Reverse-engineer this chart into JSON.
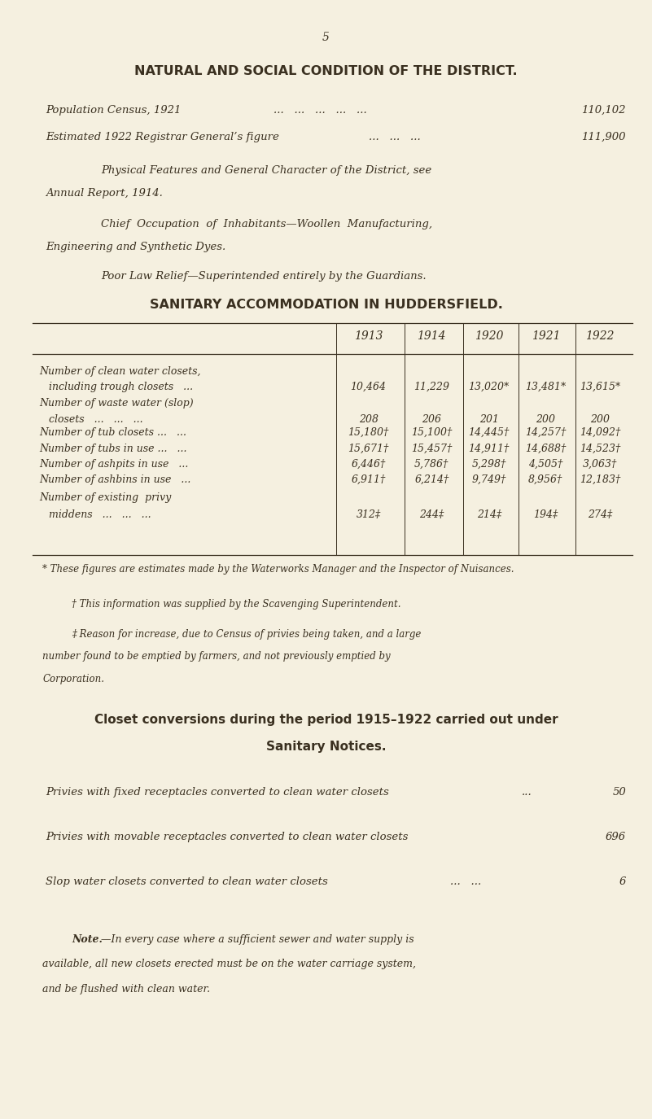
{
  "bg_color": "#f5f0e0",
  "text_color": "#3a3020",
  "page_number": "5",
  "title1": "NATURAL AND SOCIAL CONDITION OF THE DISTRICT.",
  "line1_label": "Population Census, 1921",
  "line1_value": "110,102",
  "line2_label": "Estimated 1922 Registrar General’s figure",
  "line2_value": "111,900",
  "para1a": "Physical Features and General Character of the District, see",
  "para1b": "Annual Report, 1914.",
  "para2a": "Chief  Occupation  of  Inhabitants—Woollen  Manufacturing,",
  "para2b": "Engineering and Synthetic Dyes.",
  "para3": "Poor Law Relief—Superintended entirely by the Guardians.",
  "table_title": "SANITARY ACCOMMODATION IN HUDDERSFIELD.",
  "col_headers": [
    "1913",
    "1914",
    "1920",
    "1921",
    "1922"
  ],
  "row_labels": [
    [
      "Number of clean water closets,",
      "   including trough closets   ..."
    ],
    [
      "Number of waste water (slop)",
      "   closets   ...   ...   ..."
    ],
    [
      "Number of tub closets ...   ..."
    ],
    [
      "Number of tubs in use ...   ..."
    ],
    [
      "Number of ashpits in use   ..."
    ],
    [
      "Number of ashbins in use   ..."
    ],
    [
      "Number of existing  privy",
      "   middens   ...   ...   ..."
    ]
  ],
  "table_data": [
    [
      "10,464",
      "11,229",
      "13,020*",
      "13,481*",
      "13,615*"
    ],
    [
      "208",
      "206",
      "201",
      "200",
      "200"
    ],
    [
      "15,180†",
      "15,100†",
      "14,445†",
      "14,257†",
      "14,092†"
    ],
    [
      "15,671†",
      "15,457†",
      "14,911†",
      "14,688†",
      "14,523†"
    ],
    [
      "6,446†",
      "5,786†",
      "5,298†",
      "4,505†",
      "3,063†"
    ],
    [
      "6,911†",
      "6,214†",
      "9,749†",
      "8,956†",
      "12,183†"
    ],
    [
      "312‡",
      "244‡",
      "214‡",
      "194‡",
      "274‡"
    ]
  ],
  "footnote1": "* These figures are estimates made by the Waterworks Manager and the Inspector of Nuisances.",
  "footnote2": "† This information was supplied by the Scavenging Superintendent.",
  "footnote3a": "‡ Reason for increase, due to Census of privies being taken, and a large",
  "footnote3b": "number found to be emptied by farmers, and not previously emptied by",
  "footnote3c": "Corporation.",
  "section2_title1": "Closet conversions during the period 1915–1922 carried out under",
  "section2_title2": "Sanitary Notices.",
  "conv1_label": "Privies with fixed receptacles converted to clean water closets",
  "conv1_value": "50",
  "conv2_label": "Privies with movable receptacles converted to clean water closets",
  "conv2_value": "696",
  "conv3_label": "Slop water closets converted to clean water closets",
  "conv3_value": "6",
  "note_label": "Note.",
  "note_body1": "—In every case where a sufficient sewer and water supply is",
  "note_body2": "available, all new closets erected must be on the water carriage system,",
  "note_body3": "and be flushed with clean water."
}
